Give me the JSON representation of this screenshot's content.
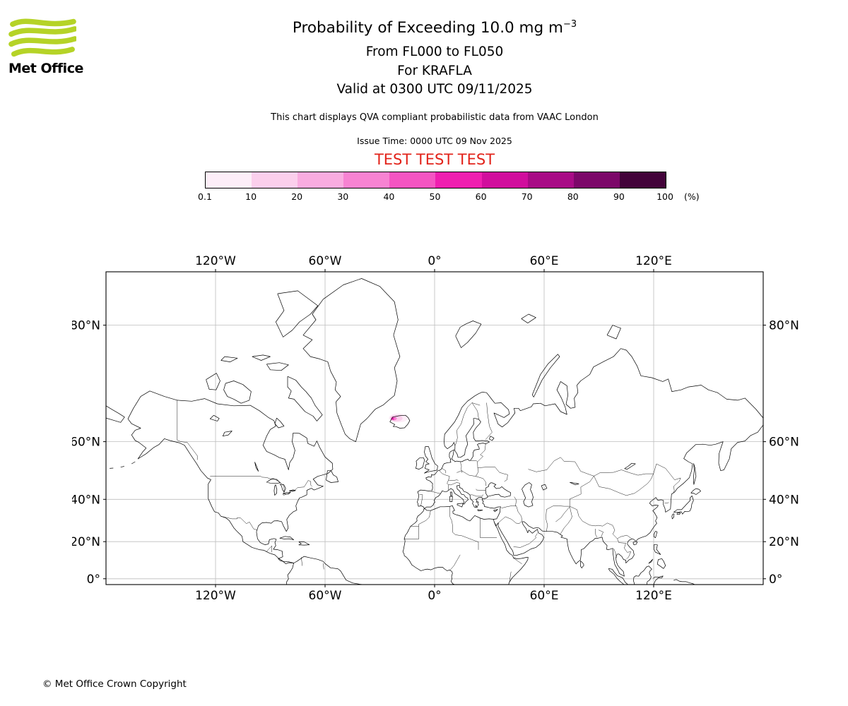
{
  "brand": {
    "logo_green": "#b5d327",
    "test_red": "#e2231a"
  },
  "header": {
    "logo_text": "Met Office",
    "title_main": "Probability of Exceeding 10.0 mg m",
    "title_exp": "−3",
    "subtitle_fl": "From FL000 to FL050",
    "subtitle_volcano": "For KRAFLA",
    "subtitle_valid": "Valid at 0300 UTC 09/11/2025",
    "note": "This chart displays QVA compliant probabilistic data from VAAC London",
    "issue_time": "Issue Time: 0000 UTC 09 Nov 2025",
    "test_banner": "TEST TEST TEST"
  },
  "colorbar": {
    "unit": "(%)",
    "ticks": [
      "0.1",
      "10",
      "20",
      "30",
      "40",
      "50",
      "60",
      "70",
      "80",
      "90",
      "100"
    ],
    "colors": [
      "#fdeef8",
      "#fbcfec",
      "#f9ace0",
      "#f783d2",
      "#f455c2",
      "#ef1fb0",
      "#d10e9d",
      "#a80b86",
      "#7c0769",
      "#43033a"
    ]
  },
  "map": {
    "grid_color": "#bdbdbd",
    "lon_ticks": [
      {
        "lon": -120,
        "label": "120°W"
      },
      {
        "lon": -60,
        "label": "60°W"
      },
      {
        "lon": 0,
        "label": "0°"
      },
      {
        "lon": 60,
        "label": "60°E"
      },
      {
        "lon": 120,
        "label": "120°E"
      }
    ],
    "lat_ticks": [
      {
        "lat": 80,
        "label": "80°N"
      },
      {
        "lat": 60,
        "label": "60°N"
      },
      {
        "lat": 40,
        "label": "40°N"
      },
      {
        "lat": 20,
        "label": "20°N"
      },
      {
        "lat": 0,
        "label": "0°"
      }
    ]
  },
  "chart_data": {
    "type": "map-contour-probability",
    "projection": "mercator",
    "extent": {
      "lon_min": -180,
      "lon_max": 180,
      "lat_min": -3.2,
      "lat_max": 84
    },
    "title": "Probability of Exceeding 10.0 mg m⁻³",
    "flight_levels": "FL000 to FL050",
    "volcano": "KRAFLA",
    "valid_time": "0300 UTC 09/11/2025",
    "issue_time": "0000 UTC 09 Nov 2025",
    "source": "VAAC London",
    "status": "TEST",
    "threshold": "10.0 mg m⁻³",
    "percent_levels": [
      0.1,
      10,
      20,
      30,
      40,
      50,
      60,
      70,
      80,
      90,
      100
    ],
    "lon_gridlines": [
      -120,
      -60,
      0,
      60,
      120
    ],
    "lat_gridlines": [
      0,
      20,
      40,
      60,
      80
    ],
    "ash_cloud": {
      "location": "near Krafla, Iceland",
      "contours": [
        {
          "level_pct": 0.1,
          "color": "#fdeef8",
          "center_lon": -19.8,
          "center_lat": 65.9,
          "rx_deg": 5.2,
          "ry_deg": 1.0
        },
        {
          "level_pct": 10,
          "color": "#fbcfec",
          "center_lon": -21.0,
          "center_lat": 65.85,
          "rx_deg": 3.4,
          "ry_deg": 0.75
        },
        {
          "level_pct": 30,
          "color": "#f783d2",
          "center_lon": -22.3,
          "center_lat": 65.8,
          "rx_deg": 1.6,
          "ry_deg": 0.45
        },
        {
          "level_pct": 50,
          "color": "#ef1fb0",
          "center_lon": -22.9,
          "center_lat": 65.75,
          "rx_deg": 0.7,
          "ry_deg": 0.28
        }
      ]
    }
  },
  "footer": {
    "copyright": "© Met Office Crown Copyright"
  }
}
